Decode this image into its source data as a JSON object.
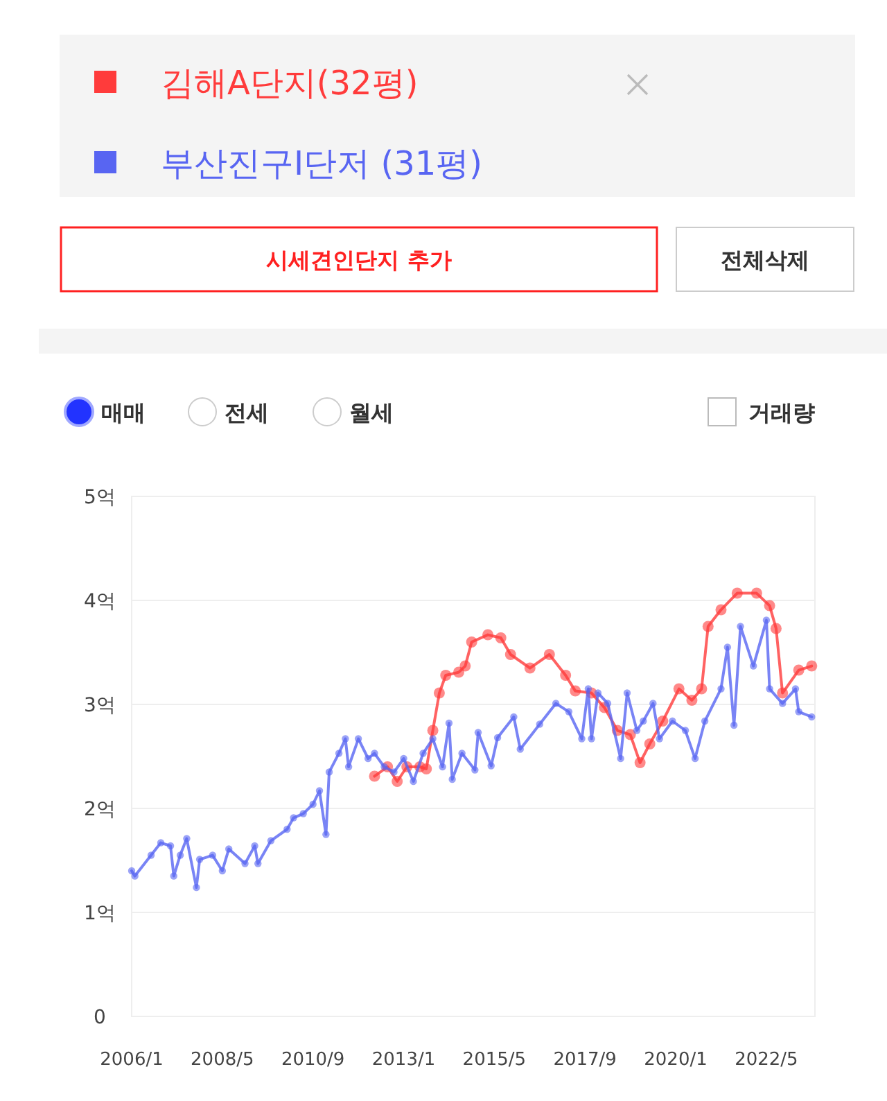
{
  "chart_data": {
    "type": "line",
    "x": [
      "2006-01",
      "2006-02",
      "2006-07",
      "2006-10",
      "2007-01",
      "2007-02",
      "2007-04",
      "2007-06",
      "2007-09",
      "2007-10",
      "2008-02",
      "2008-05",
      "2008-07",
      "2008-12",
      "2009-03",
      "2009-04",
      "2009-08",
      "2010-01",
      "2010-03",
      "2010-06",
      "2010-09",
      "2010-11",
      "2011-01",
      "2011-02",
      "2011-05",
      "2011-07",
      "2011-08",
      "2011-11",
      "2012-02",
      "2012-04",
      "2012-07",
      "2012-10",
      "2013-01",
      "2013-04",
      "2013-07",
      "2013-10",
      "2014-01",
      "2014-03",
      "2014-04",
      "2014-07",
      "2014-11",
      "2014-12",
      "2015-04",
      "2015-06",
      "2015-11",
      "2016-01",
      "2016-07",
      "2016-12",
      "2017-04",
      "2017-08",
      "2017-10",
      "2017-11",
      "2018-01",
      "2018-04",
      "2018-08",
      "2018-10",
      "2019-01",
      "2019-03",
      "2019-06",
      "2019-08",
      "2019-12",
      "2020-04",
      "2020-07",
      "2020-10",
      "2021-03",
      "2021-05",
      "2021-07",
      "2021-09",
      "2022-01",
      "2022-05",
      "2022-06",
      "2022-10",
      "2023-02",
      "2023-03",
      "2023-07"
    ],
    "series": [
      {
        "name": "김해A단지(32평)",
        "color": "#ff3b3b",
        "x": [
          "2012-04",
          "2012-08",
          "2012-11",
          "2013-02",
          "2013-06",
          "2013-08",
          "2013-10",
          "2013-12",
          "2014-02",
          "2014-06",
          "2014-08",
          "2014-10",
          "2015-03",
          "2015-07",
          "2015-10",
          "2016-04",
          "2016-10",
          "2017-03",
          "2017-06",
          "2017-11",
          "2018-03",
          "2018-07",
          "2018-11",
          "2019-02",
          "2019-05",
          "2019-09",
          "2020-02",
          "2020-06",
          "2020-09",
          "2020-11",
          "2021-03",
          "2021-08",
          "2022-02",
          "2022-06",
          "2022-08",
          "2022-10",
          "2023-03",
          "2023-07"
        ],
        "values": [
          2.31,
          2.4,
          2.26,
          2.4,
          2.4,
          2.38,
          2.75,
          3.11,
          3.28,
          3.31,
          3.37,
          3.6,
          3.67,
          3.64,
          3.48,
          3.35,
          3.48,
          3.28,
          3.13,
          3.11,
          2.97,
          2.75,
          2.71,
          2.44,
          2.62,
          2.84,
          3.15,
          3.04,
          3.15,
          3.75,
          3.91,
          4.07,
          4.07,
          3.95,
          3.73,
          3.11,
          3.33,
          3.37
        ]
      },
      {
        "name": "부산진구I단저 (31평)",
        "color": "#5865f2",
        "values": [
          1.4,
          1.35,
          1.55,
          1.67,
          1.64,
          1.35,
          1.55,
          1.71,
          1.24,
          1.51,
          1.55,
          1.4,
          1.61,
          1.47,
          1.64,
          1.47,
          1.69,
          1.8,
          1.91,
          1.95,
          2.04,
          2.17,
          1.75,
          2.35,
          2.53,
          2.67,
          2.4,
          2.67,
          2.48,
          2.53,
          2.4,
          2.35,
          2.48,
          2.26,
          2.53,
          2.67,
          2.4,
          2.82,
          2.28,
          2.53,
          2.37,
          2.73,
          2.41,
          2.68,
          2.88,
          2.57,
          2.81,
          3.01,
          2.93,
          2.67,
          3.15,
          2.67,
          3.11,
          3.01,
          2.48,
          3.11,
          2.75,
          2.84,
          3.01,
          2.67,
          2.84,
          2.75,
          2.48,
          2.84,
          3.15,
          3.55,
          2.8,
          3.75,
          3.37,
          3.81,
          3.15,
          3.01,
          3.15,
          2.93,
          2.88
        ]
      }
    ],
    "xlim": [
      "2006-01",
      "2023-08"
    ],
    "xticks": [
      {
        "value": "2006-01",
        "label": "2006/1"
      },
      {
        "value": "2008-05",
        "label": "2008/5"
      },
      {
        "value": "2010-09",
        "label": "2010/9"
      },
      {
        "value": "2013-01",
        "label": "2013/1"
      },
      {
        "value": "2015-05",
        "label": "2015/5"
      },
      {
        "value": "2017-09",
        "label": "2017/9"
      },
      {
        "value": "2020-01",
        "label": "2020/1"
      },
      {
        "value": "2022-05",
        "label": "2022/5"
      }
    ],
    "ylim": [
      0,
      5
    ],
    "yticks": [
      0,
      {
        "value": 1,
        "label": "1억"
      },
      {
        "value": 2,
        "label": "2억"
      },
      {
        "value": 3,
        "label": "3억"
      },
      {
        "value": 4,
        "label": "4억"
      },
      {
        "value": 5,
        "label": "5억"
      }
    ],
    "grid": "y",
    "legend": "top",
    "marker": "circle",
    "line_style": "solid",
    "annotations": [
      "시세견인단지 추가",
      "전체삭제",
      "매매",
      "전세",
      "월세",
      "거래량"
    ]
  }
}
